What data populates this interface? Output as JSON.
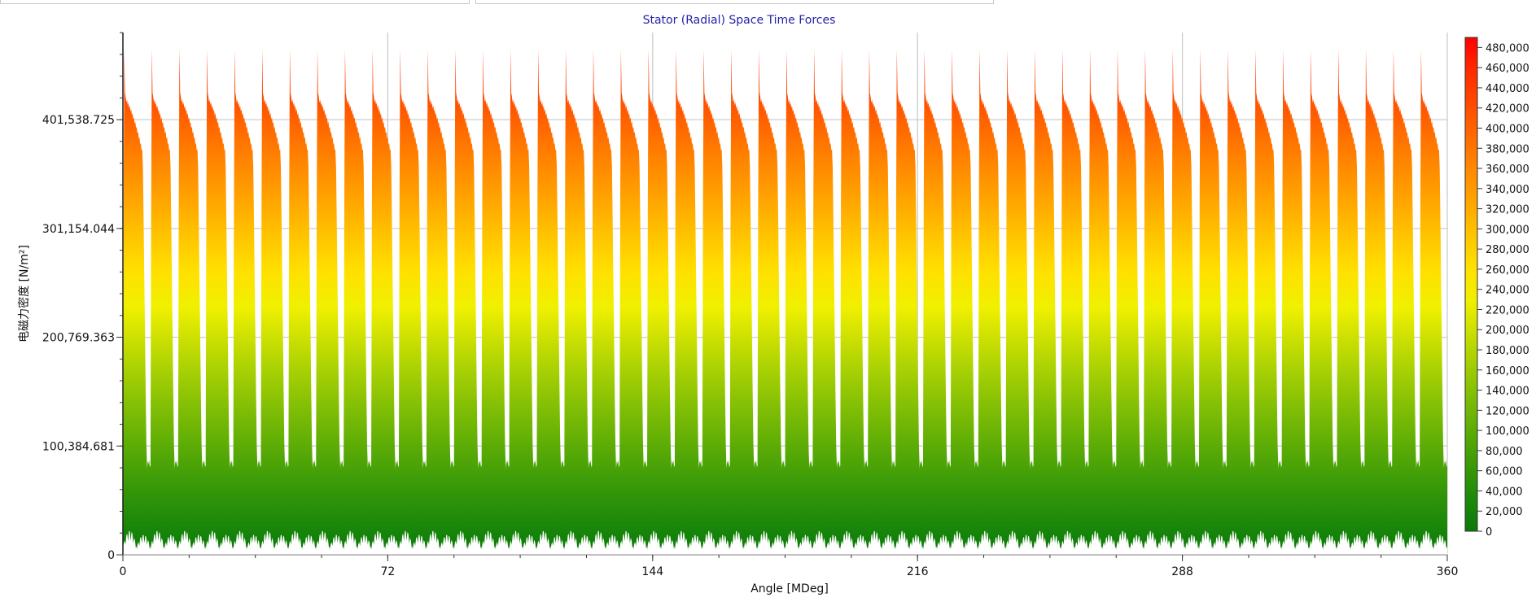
{
  "toolbar": {
    "field_1": "",
    "field_2": ""
  },
  "chart_data": {
    "type": "area",
    "title": "Stator (Radial) Space Time Forces",
    "xlabel": "Angle [MDeg]",
    "ylabel": "电磁力密度 [N/m²]",
    "xlim": [
      0,
      360
    ],
    "ylim": [
      0,
      481923.27
    ],
    "x_ticks": [
      "0",
      "72",
      "144",
      "216",
      "288",
      "360"
    ],
    "y_ticks": [
      "0",
      "100,384.681",
      "200,769.363",
      "301,154.044",
      "401,538.725"
    ],
    "grid": true,
    "legend": "colorbar-right",
    "colorbar": {
      "min": 0,
      "max": 490000,
      "tick_labels": [
        "0",
        "20,000",
        "40,000",
        "60,000",
        "80,000",
        "100,000",
        "120,000",
        "140,000",
        "160,000",
        "180,000",
        "200,000",
        "220,000",
        "240,000",
        "260,000",
        "280,000",
        "300,000",
        "320,000",
        "340,000",
        "360,000",
        "380,000",
        "400,000",
        "420,000",
        "440,000",
        "460,000",
        "480,000"
      ],
      "colors": [
        "#0a7a0a",
        "#1e8a0a",
        "#3a9a08",
        "#5aab06",
        "#7cbc05",
        "#a0cd04",
        "#c8de02",
        "#f0f000",
        "#ffe000",
        "#ffc400",
        "#ffa500",
        "#ff8800",
        "#ff6a00",
        "#ff4a00",
        "#ff2a00",
        "#ff0000"
      ]
    },
    "series": [
      {
        "pole_pairs": 48,
        "peak_value": 481000,
        "base_value": 397000,
        "trough_value": 82000,
        "bottom_ripple_max": 22000
      }
    ]
  }
}
